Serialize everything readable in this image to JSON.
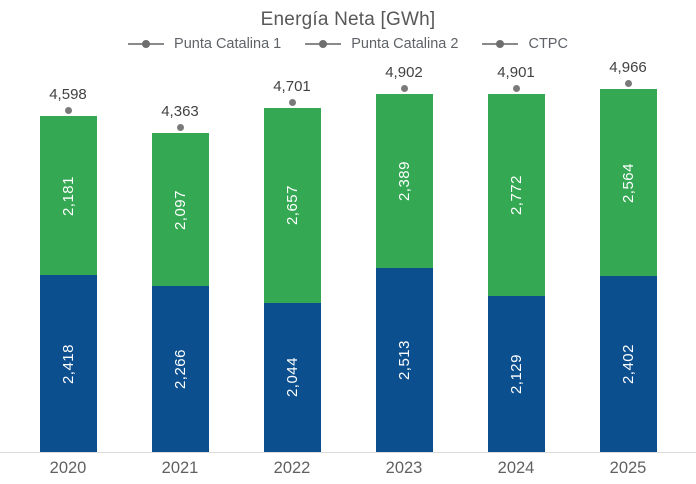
{
  "title": "Energía Neta [GWh]",
  "legend": [
    {
      "label": "Punta Catalina 1"
    },
    {
      "label": "Punta Catalina 2"
    },
    {
      "label": "CTPC"
    }
  ],
  "colors": {
    "pc1_blue": "#0b4f8e",
    "pc2_green": "#34a853",
    "ctpc_marker_gray": "#7a7a7a",
    "axis_line": "#dcdcdc",
    "total_label": "#424242",
    "year_label": "#616161"
  },
  "chart_data": {
    "type": "bar",
    "stacked": true,
    "title": "Energía Neta [GWh]",
    "xlabel": "",
    "ylabel": "",
    "grid": false,
    "legend_position": "top",
    "value_format": "thousands-comma",
    "categories": [
      "2020",
      "2021",
      "2022",
      "2023",
      "2024",
      "2025"
    ],
    "series": [
      {
        "name": "Punta Catalina 1",
        "key": "pc1",
        "stack_position": "bottom",
        "color": "#0b4f8e",
        "values": [
          2418,
          2266,
          2044,
          2513,
          2129,
          2402
        ]
      },
      {
        "name": "Punta Catalina 2",
        "key": "pc2",
        "stack_position": "top",
        "color": "#34a853",
        "values": [
          2181,
          2097,
          2657,
          2389,
          2772,
          2564
        ]
      }
    ],
    "totals": {
      "name": "CTPC",
      "marker": "dot",
      "color": "#7a7a7a",
      "values": [
        4598,
        4363,
        4701,
        4902,
        4901,
        4966
      ]
    }
  }
}
